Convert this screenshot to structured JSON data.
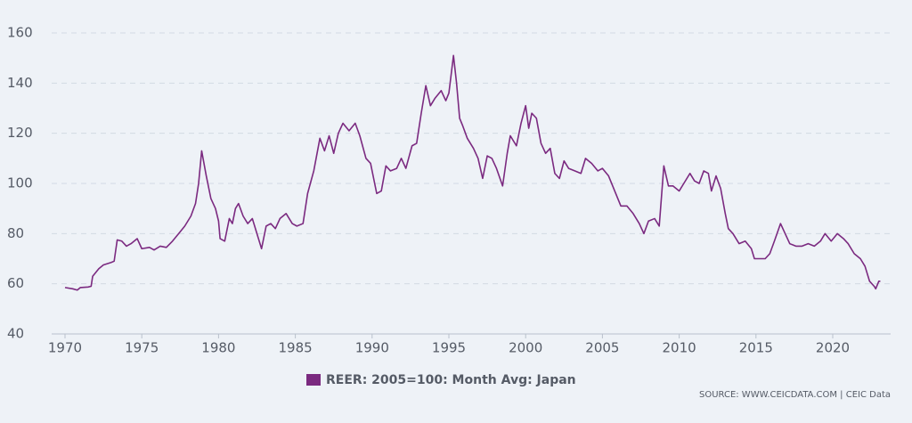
{
  "chart_data": {
    "type": "line",
    "x": [
      1970.0,
      1970.5,
      1970.8,
      1971.0,
      1971.5,
      1971.7,
      1971.8,
      1972.2,
      1972.5,
      1973.0,
      1973.2,
      1973.4,
      1973.7,
      1974.0,
      1974.3,
      1974.7,
      1975.0,
      1975.5,
      1975.8,
      1976.2,
      1976.6,
      1977.0,
      1977.4,
      1977.8,
      1978.2,
      1978.5,
      1978.7,
      1978.9,
      1979.2,
      1979.5,
      1979.8,
      1980.0,
      1980.1,
      1980.4,
      1980.7,
      1980.9,
      1981.1,
      1981.3,
      1981.6,
      1981.9,
      1982.2,
      1982.5,
      1982.8,
      1983.1,
      1983.4,
      1983.7,
      1984.0,
      1984.4,
      1984.8,
      1985.1,
      1985.5,
      1985.8,
      1986.2,
      1986.6,
      1986.9,
      1987.2,
      1987.5,
      1987.8,
      1988.1,
      1988.5,
      1988.9,
      1989.2,
      1989.6,
      1989.9,
      1990.3,
      1990.6,
      1990.9,
      1991.2,
      1991.6,
      1991.9,
      1992.2,
      1992.6,
      1992.9,
      1993.2,
      1993.5,
      1993.8,
      1994.1,
      1994.5,
      1994.8,
      1995.0,
      1995.2,
      1995.3,
      1995.5,
      1995.7,
      1995.9,
      1996.2,
      1996.6,
      1996.9,
      1997.2,
      1997.5,
      1997.8,
      1998.1,
      1998.5,
      1998.8,
      1999.0,
      1999.4,
      1999.7,
      2000.0,
      2000.2,
      2000.4,
      2000.7,
      2001.0,
      2001.3,
      2001.6,
      2001.9,
      2002.2,
      2002.5,
      2002.8,
      2003.2,
      2003.6,
      2003.9,
      2004.3,
      2004.7,
      2005.0,
      2005.4,
      2005.8,
      2006.2,
      2006.6,
      2007.0,
      2007.4,
      2007.7,
      2008.0,
      2008.4,
      2008.7,
      2009.0,
      2009.3,
      2009.6,
      2010.0,
      2010.3,
      2010.7,
      2011.0,
      2011.3,
      2011.6,
      2011.9,
      2012.1,
      2012.4,
      2012.7,
      2013.0,
      2013.2,
      2013.5,
      2013.9,
      2014.3,
      2014.7,
      2014.9,
      2015.3,
      2015.6,
      2015.9,
      2016.2,
      2016.6,
      2016.9,
      2017.2,
      2017.6,
      2018.0,
      2018.4,
      2018.8,
      2019.2,
      2019.5,
      2019.9,
      2020.3,
      2020.7,
      2021.0,
      2021.4,
      2021.8,
      2022.1,
      2022.4,
      2022.7,
      2022.8,
      2023.0,
      2023.1
    ],
    "series": [
      {
        "name": "REER: 2005=100: Month Avg: Japan",
        "color": "#7b2a80",
        "values": [
          58.5,
          58,
          57.5,
          58.5,
          58.7,
          59,
          63,
          66,
          67.5,
          68.5,
          69,
          77.5,
          77,
          75,
          76,
          78,
          74,
          74.5,
          73.5,
          75,
          74.5,
          77,
          80,
          83,
          87,
          92,
          100,
          113,
          103,
          94,
          90,
          85,
          78,
          77,
          86,
          84,
          90,
          92,
          87,
          84,
          86,
          80,
          74,
          83,
          84,
          82,
          86,
          88,
          84,
          83,
          84,
          96,
          105,
          118,
          113,
          119,
          112,
          120,
          124,
          121,
          124,
          119,
          110,
          108,
          96,
          97,
          107,
          105,
          106,
          110,
          106,
          115,
          116,
          128,
          139,
          131,
          134,
          137,
          133,
          136,
          146,
          151,
          140,
          126,
          123,
          118,
          114,
          110,
          102,
          111,
          110,
          106,
          99,
          112,
          119,
          115,
          124,
          131,
          122,
          128,
          126,
          116,
          112,
          114,
          104,
          102,
          109,
          106,
          105,
          104,
          110,
          108,
          105,
          106,
          103,
          97,
          91,
          91,
          88,
          84,
          80,
          85,
          86,
          83,
          107,
          99,
          99,
          97,
          100,
          104,
          101,
          100,
          105,
          104,
          97,
          103,
          98,
          88,
          82,
          80,
          76,
          77,
          74,
          70,
          70,
          70,
          72,
          77,
          84,
          80,
          76,
          75,
          75,
          76,
          75,
          77,
          80,
          77,
          80,
          78,
          76,
          72,
          70,
          67,
          61,
          59,
          58,
          61,
          61
        ]
      }
    ],
    "xlim": [
      1969.13,
      2023.77
    ],
    "xticks": [
      1970,
      1975,
      1980,
      1985,
      1990,
      1995,
      2000,
      2005,
      2010,
      2015,
      2020
    ],
    "ylim": [
      40,
      160
    ],
    "yticks": [
      40,
      60,
      80,
      100,
      120,
      140,
      160
    ],
    "grid": true,
    "source": "SOURCE: WWW.CEICDATA.COM | CEIC Data"
  }
}
